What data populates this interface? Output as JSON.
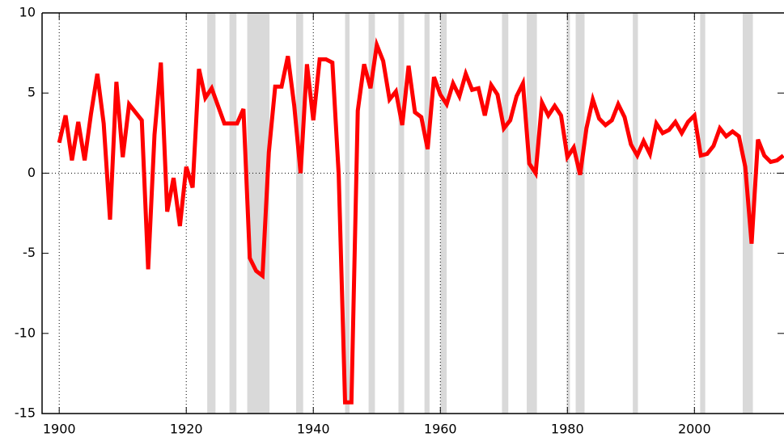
{
  "chart_data": {
    "type": "line",
    "x": [
      1900,
      1901,
      1902,
      1903,
      1904,
      1905,
      1906,
      1907,
      1908,
      1909,
      1910,
      1911,
      1912,
      1913,
      1914,
      1915,
      1916,
      1917,
      1918,
      1919,
      1920,
      1921,
      1922,
      1923,
      1924,
      1925,
      1926,
      1927,
      1928,
      1929,
      1930,
      1931,
      1932,
      1933,
      1934,
      1935,
      1936,
      1937,
      1938,
      1939,
      1940,
      1941,
      1942,
      1943,
      1944,
      1945,
      1946,
      1947,
      1948,
      1949,
      1950,
      1951,
      1952,
      1953,
      1954,
      1955,
      1956,
      1957,
      1958,
      1959,
      1960,
      1961,
      1962,
      1963,
      1964,
      1965,
      1966,
      1967,
      1968,
      1969,
      1970,
      1971,
      1972,
      1973,
      1974,
      1975,
      1976,
      1977,
      1978,
      1979,
      1980,
      1981,
      1982,
      1983,
      1984,
      1985,
      1986,
      1987,
      1988,
      1989,
      1990,
      1991,
      1992,
      1993,
      1994,
      1995,
      1996,
      1997,
      1998,
      1999,
      2000,
      2001,
      2002,
      2003,
      2004,
      2005,
      2006,
      2007,
      2008,
      2009,
      2010,
      2011,
      2012,
      2013,
      2014
    ],
    "series": [
      {
        "color": "#ff0000",
        "values": [
          1.9,
          3.6,
          0.8,
          3.2,
          0.8,
          3.7,
          6.2,
          3.1,
          -2.9,
          5.7,
          1.0,
          4.3,
          3.8,
          3.3,
          -6.0,
          2.4,
          6.9,
          -2.4,
          -0.3,
          -3.3,
          0.4,
          -0.9,
          6.5,
          4.7,
          5.3,
          4.2,
          3.1,
          3.1,
          3.1,
          4.0,
          -5.3,
          -6.1,
          -6.4,
          1.3,
          5.4,
          5.4,
          7.3,
          4.2,
          0.0,
          6.8,
          3.3,
          7.1,
          7.1,
          6.9,
          -0.1,
          -14.3,
          -14.3,
          3.9,
          6.8,
          5.3,
          8.0,
          7.0,
          4.6,
          5.1,
          3.0,
          6.7,
          3.8,
          3.5,
          1.5,
          6.0,
          4.9,
          4.3,
          5.6,
          4.8,
          6.2,
          5.2,
          5.3,
          3.6,
          5.5,
          4.9,
          2.8,
          3.3,
          4.8,
          5.6,
          0.6,
          0.0,
          4.4,
          3.6,
          4.2,
          3.6,
          1.0,
          1.6,
          -0.1,
          2.8,
          4.6,
          3.4,
          3.0,
          3.3,
          4.3,
          3.5,
          1.8,
          1.1,
          2.0,
          1.2,
          3.1,
          2.5,
          2.7,
          3.2,
          2.5,
          3.2,
          3.6,
          1.1,
          1.2,
          1.7,
          2.8,
          2.3,
          2.6,
          2.3,
          0.4,
          -4.4,
          2.1,
          1.1,
          0.7,
          0.8,
          1.1
        ]
      }
    ],
    "shaded_ranges": [
      [
        1923.3,
        1924.6
      ],
      [
        1926.8,
        1927.9
      ],
      [
        1929.6,
        1933.1
      ],
      [
        1937.3,
        1938.4
      ],
      [
        1945.0,
        1945.7
      ],
      [
        1948.7,
        1949.7
      ],
      [
        1953.4,
        1954.3
      ],
      [
        1957.5,
        1958.3
      ],
      [
        1960.0,
        1961.0
      ],
      [
        1969.7,
        1970.7
      ],
      [
        1973.6,
        1975.2
      ],
      [
        1979.9,
        1980.4
      ],
      [
        1981.3,
        1982.7
      ],
      [
        1990.3,
        1991.1
      ],
      [
        2000.9,
        2001.7
      ],
      [
        2007.6,
        2009.2
      ]
    ],
    "shade_color": "#d9d9d9",
    "xlim": [
      1897.3,
      2014.1
    ],
    "xticks": [
      1900,
      1920,
      1940,
      1960,
      1980,
      2000
    ],
    "ylim": [
      -15,
      10
    ],
    "yticks": [
      -15,
      -10,
      -5,
      0,
      5,
      10
    ],
    "grid": "x",
    "zero_line": true
  }
}
